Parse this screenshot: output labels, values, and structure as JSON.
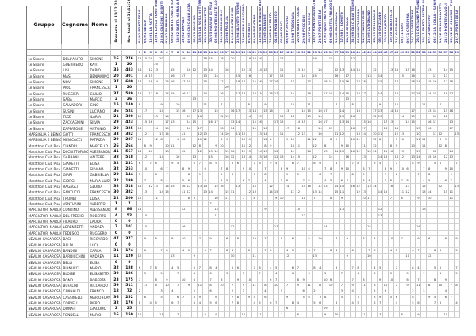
{
  "table": {
    "headers": {
      "gruppo": "Gruppo",
      "cognome": "Cognome",
      "nome": "Nome",
      "presenze": "Presenze al 31/12/2025",
      "km": "Km. totali al 31/12/2025"
    },
    "header_text_color": "#3434b2",
    "date_columns": [
      "01/01 PONTEDERA",
      "06/01 GELLO",
      "12/01 LA ROTTA",
      "19/01 LUCCA FORO BOARIO",
      "26/01 CASCINE DI BUTI",
      "02/02 PAPPIANA",
      "09/02 SANTA CROCE SULL'ARNO",
      "16/02 SANTA MARIA A MONTE",
      "23/02 EMPOLI",
      "02/03 CASCIANA ALTA",
      "09/03 CASCINA",
      "16/03 LA ROSA DI TERRICCIOLA",
      "23/03 FORNACETTE",
      "30/03 MARINA DI PISA",
      "06/04 MONTECASTELLO",
      "13/04 CAPANNOLI",
      "20/04 FAUGLIA",
      "21/04 MONTECCHIO",
      "25/04 ULIVETO TERME",
      "27/04 SAN CASCIANO",
      "01/05 BUTI",
      "04/05 BIENTINA",
      "11/05 SAN MINIATO BASSO",
      "18/05 CAPANNE",
      "25/05 MACERATA",
      "01/06 PONSACCO",
      "02/06 CALCI",
      "08/06 FORCOLI",
      "15/06 TREGGIAIA",
      "22/06 SANTA LUCIA",
      "29/06 PECCIOLI",
      "06/07 LA BORRA",
      "13/07 MONTECALVOLI BASSO",
      "20/07 PONTEDERA",
      "27/07 QUATTRO STRADE BIENTINA",
      "03/08 CASTELFRANCO DI SOTTO",
      "10/08 CALCINAIA",
      "17/08 IL ROMITO",
      "24/08 CENAIA",
      "31/08 CASCIANA TERME",
      "07/09 VICOPISANO",
      "14/09 NAVACCHIO",
      "21/09 LATIGNANO",
      "28/09 PERIGNANO",
      "05/10 GHIZZANO",
      "12/10 LAJATICO",
      "19/10 SELVATELLE",
      "26/10 SOIANA",
      "02/11 LARI",
      "09/11 CRESPINA",
      "16/11 LORENZANA",
      "23/11 ORCIANO PISANO",
      "30/11 SANTO PIETRO BELVEDERE",
      "07/12 ORATOIO",
      "08/12 LA SCALA - SAN MINIATO",
      "14/12 COLLESALVETTI",
      "21/12 MONTECALVOLI",
      "26/12 LE MELORIE - PONSACCO",
      "28/12 PONTEDERA"
    ],
    "rows": [
      {
        "gruppo": "Le Sbarre",
        "cognome": "DELL'AIUTO",
        "nome": "SIMONE",
        "presenze": 16,
        "km": 276,
        "cells": {
          "0": 16,
          "1": 15,
          "2": 20,
          "4": 20,
          "8": 18,
          "12": 18,
          "13": 15,
          "15": 18,
          "17": 20,
          "20": 19,
          "21": 18,
          "22": 16,
          "26": 17,
          "32": 19,
          "35": 15,
          "39": 12
        }
      },
      {
        "gruppo": "Le Sbarre",
        "cognome": "GUERRIERO",
        "nome": "KATI",
        "presenze": 1,
        "km": 20,
        "cells": {
          "3": 20
        }
      },
      {
        "gruppo": "Le Sbarre",
        "cognome": "LISI",
        "nome": "DARIO",
        "presenze": 35,
        "km": 483
      },
      {
        "gruppo": "Le Sbarre",
        "cognome": "MASI",
        "nome": "BENIAMINO",
        "presenze": 20,
        "km": 301
      },
      {
        "gruppo": "Le Sbarre",
        "cognome": "NOVI",
        "nome": "SIMONE",
        "presenze": 37,
        "km": 600
      },
      {
        "gruppo": "Le Sbarre",
        "cognome": "PIOLI",
        "nome": "FRANCESCA",
        "presenze": 1,
        "km": 20,
        "cells": {
          "16": 20
        }
      },
      {
        "gruppo": "Le Sbarre",
        "cognome": "RUGGIERI",
        "nome": "GIULIO",
        "presenze": 37,
        "km": 589
      },
      {
        "gruppo": "Le Sbarre",
        "cognome": "SABA",
        "nome": "MARCO",
        "presenze": 2,
        "km": 26,
        "cells": {
          "10": 13,
          "38": 13
        }
      },
      {
        "gruppo": "Le Sbarre",
        "cognome": "SALVADORI",
        "nome": "GINO",
        "presenze": 15,
        "km": 140
      },
      {
        "gruppo": "Le Sbarre",
        "cognome": "SUSINI",
        "nome": "LUCIANO",
        "presenze": 36,
        "km": 524
      },
      {
        "gruppo": "Le Sbarre",
        "cognome": "TIZZI",
        "nome": "ILARIA",
        "presenze": 21,
        "km": 300
      },
      {
        "gruppo": "Le Sbarre",
        "cognome": "ZACCAGNINI",
        "nome": "SILVIA",
        "presenze": 29,
        "km": 423
      },
      {
        "gruppo": "Le Sbarre",
        "cognome": "ZAPPATORE",
        "nome": "ANTONIO",
        "presenze": 20,
        "km": 325
      },
      {
        "gruppo": "MARSIGLIA E BEIN G.S.",
        "cognome": "GOTTI",
        "nome": "FRANCESCO",
        "presenze": 33,
        "km": 382
      },
      {
        "gruppo": "MARSIGLIA E BEIN G.S.",
        "cognome": "MENICACCI",
        "nome": "PATRIZIA",
        "presenze": 29,
        "km": 287
      },
      {
        "gruppo": "Marathon Club Pisa",
        "cognome": "CIANDRI",
        "nome": "MARCELLO",
        "presenze": 26,
        "km": 264
      },
      {
        "gruppo": "Marathon Club Pisa",
        "cognome": "DI CRISTOFANO",
        "nome": "ALESSANDRO",
        "presenze": 41,
        "km": 567
      },
      {
        "gruppo": "Marathon Club Pisa",
        "cognome": "GABBANI",
        "nome": "VALTERE",
        "presenze": 38,
        "km": 518
      },
      {
        "gruppo": "Marathon Club Pisa",
        "cognome": "GIANETTI",
        "nome": "ELISA",
        "presenze": 32,
        "km": 231
      },
      {
        "gruppo": "Marathon Club Pisa",
        "cognome": "GIANETTI",
        "nome": "SILVANA",
        "presenze": 32,
        "km": 253
      },
      {
        "gruppo": "Marathon Club Pisa",
        "cognome": "GIARI",
        "nome": "GABRIELLA",
        "presenze": 20,
        "km": 144
      },
      {
        "gruppo": "Marathon Club Pisa",
        "cognome": "GIORGI",
        "nome": "MARIA LUISA",
        "presenze": 32,
        "km": 199
      },
      {
        "gruppo": "Marathon Club Pisa",
        "cognome": "RAGAGLI",
        "nome": "GLORIA",
        "presenze": 38,
        "km": 518
      },
      {
        "gruppo": "Marathon Club Pisa",
        "cognome": "SANTUCCI",
        "nome": "FRANCESCO",
        "presenze": 30,
        "km": 382
      },
      {
        "gruppo": "Marathon Club Pisa",
        "cognome": "TROMBI",
        "nome": "LUISA",
        "presenze": 22,
        "km": 200
      },
      {
        "gruppo": "Marathon Club Pisa",
        "cognome": "VENTURINI",
        "nome": "ALBERTO",
        "presenze": 1,
        "km": 7,
        "cells": {
          "13": 7
        }
      },
      {
        "gruppo": "MARCIATORI MARLIA",
        "cognome": "CONTINO",
        "nome": "ALESSANDRO",
        "presenze": 8,
        "km": 86
      },
      {
        "gruppo": "MARCIATORI MARLIA",
        "cognome": "DEL TREDICI",
        "nome": "ROBERTO",
        "presenze": 4,
        "km": 52
      },
      {
        "gruppo": "MARCIATORI MARLIA",
        "cognome": "FILAURO",
        "nome": "LAURA",
        "presenze": 0,
        "km": 0
      },
      {
        "gruppo": "MARCIATORI MARLIA",
        "cognome": "LORENZETTI",
        "nome": "ANDREA",
        "presenze": 7,
        "km": 101
      },
      {
        "gruppo": "MARCIATORI MARLIA",
        "cognome": "TEDESCO",
        "nome": "RUGGERO",
        "presenze": 0,
        "km": 0
      },
      {
        "gruppo": "NEVILIO CASAROSA",
        "cognome": "BACI",
        "nome": "RICCARDO",
        "presenze": 47,
        "km": 377
      },
      {
        "gruppo": "NEVILIO CASAROSA",
        "cognome": "BALDI",
        "nome": "LUCA",
        "presenze": 0,
        "km": 0
      },
      {
        "gruppo": "NEVILIO CASAROSA",
        "cognome": "BANDINI",
        "nome": "CARLA",
        "presenze": 31,
        "km": 174
      },
      {
        "gruppo": "NEVILIO CASAROSA",
        "cognome": "BARDICCHINI",
        "nome": "ANDREA",
        "presenze": 11,
        "km": 120
      },
      {
        "gruppo": "NEVILIO CASAROSA",
        "cognome": "BELLI",
        "nome": "ELISA",
        "presenze": 0,
        "km": 0
      },
      {
        "gruppo": "NEVILIO CASAROSA",
        "cognome": "BIANUCCI",
        "nome": "MARIO",
        "presenze": 32,
        "km": 188
      },
      {
        "gruppo": "NEVILIO CASAROSA",
        "cognome": "BLOISE",
        "nome": "ELISABETTA",
        "presenze": 39,
        "km": 186
      },
      {
        "gruppo": "NEVILIO CASAROSA",
        "cognome": "BONO",
        "nome": "ROBERTA",
        "presenze": 23,
        "km": 175
      },
      {
        "gruppo": "NEVILIO CASAROSA",
        "cognome": "BUFALINI",
        "nome": "RICCARDO",
        "presenze": 59,
        "km": 511
      },
      {
        "gruppo": "NEVILIO CASAROSA",
        "cognome": "CANNALDI",
        "nome": "FRANCO",
        "presenze": 18,
        "km": 72
      },
      {
        "gruppo": "NEVILIO CASAROSA",
        "cognome": "CASSINELLI",
        "nome": "MARIO FLAVIO",
        "presenze": 36,
        "km": 252
      },
      {
        "gruppo": "NEVILIO CASAROSA",
        "cognome": "CORVELLI",
        "nome": "PIERO",
        "presenze": 32,
        "km": 176
      },
      {
        "gruppo": "NEVILIO CASAROSA",
        "cognome": "DONATI",
        "nome": "GIACOMO",
        "presenze": 2,
        "km": 25,
        "cells": {
          "27": 6,
          "34": 19
        }
      },
      {
        "gruppo": "NEVILIO CASAROSA",
        "cognome": "FONDELLI",
        "nome": "MARIO",
        "presenze": 16,
        "km": 150
      }
    ]
  }
}
